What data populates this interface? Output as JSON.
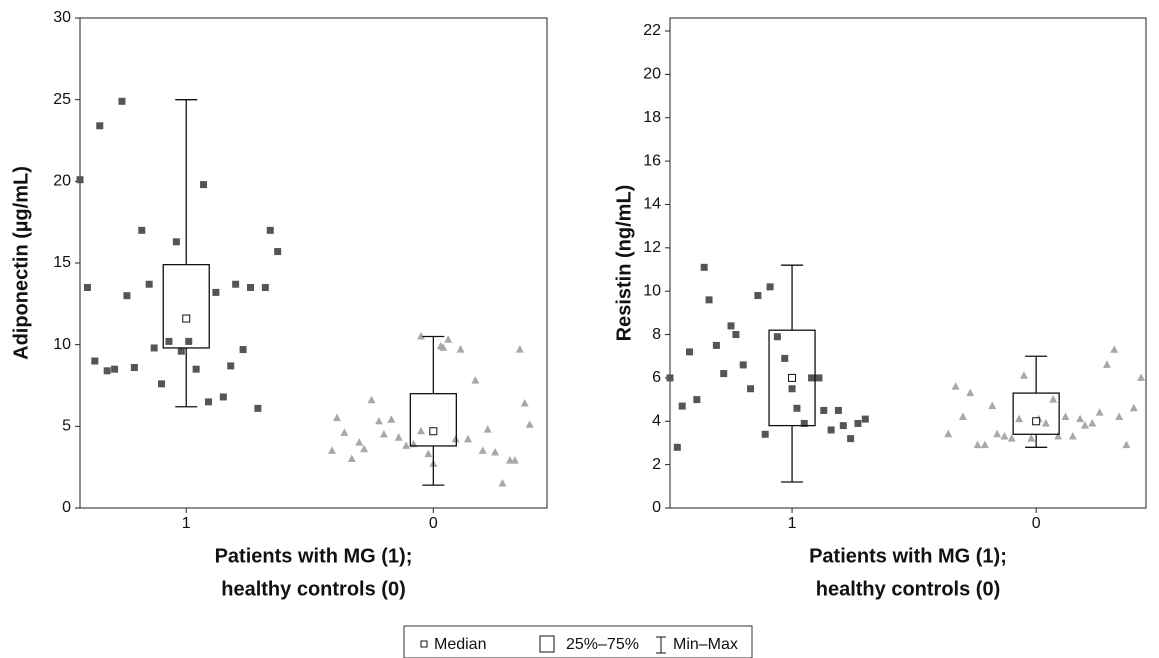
{
  "chart_data": [
    {
      "type": "box",
      "ylabel": "Adiponectin (µg/mL)",
      "xlabel": [
        "Patients with MG (1);",
        "healthy controls (0)"
      ],
      "xlim": [
        -0.43,
        1.46
      ],
      "xticks": [
        {
          "value": 0,
          "label": "1"
        },
        {
          "value": 1,
          "label": "0"
        }
      ],
      "ylim": [
        0,
        30
      ],
      "yticks": [
        0,
        5,
        10,
        15,
        20,
        25,
        30
      ],
      "boxes": [
        {
          "median": 11.6,
          "q1": 9.8,
          "q3": 14.9,
          "min": 6.2,
          "max": 25
        },
        {
          "median": 4.7,
          "q1": 3.8,
          "q3": 7.0,
          "min": 1.4,
          "max": 10.5
        }
      ],
      "points": [
        {
          "marker": "square",
          "color": "#555555",
          "x": [
            -0.43,
            -0.4,
            -0.37,
            -0.35,
            -0.32,
            -0.29,
            -0.26,
            -0.24,
            -0.21,
            -0.18,
            -0.15,
            -0.13,
            -0.1,
            -0.07,
            -0.04,
            -0.02,
            0.01,
            0.04,
            0.07,
            0.09,
            0.12,
            0.15,
            0.18,
            0.2,
            0.23,
            0.26,
            0.29,
            0.32,
            0.34,
            0.37
          ],
          "y": [
            20.1,
            13.5,
            9.0,
            23.4,
            8.4,
            8.5,
            24.9,
            13.0,
            8.6,
            17.0,
            13.7,
            9.8,
            7.6,
            10.2,
            16.3,
            9.6,
            10.2,
            8.5,
            19.8,
            6.5,
            13.2,
            6.8,
            8.7,
            13.7,
            9.7,
            13.5,
            6.1,
            13.5,
            17.0,
            15.7
          ]
        },
        {
          "marker": "triangle",
          "color": "#a8a8a8",
          "x": [
            0.59,
            0.61,
            0.64,
            0.67,
            0.7,
            0.72,
            0.75,
            0.78,
            0.8,
            0.83,
            0.86,
            0.89,
            0.92,
            0.95,
            0.95,
            0.98,
            1.0,
            1.03,
            1.04,
            1.06,
            1.09,
            1.11,
            1.14,
            1.17,
            1.2,
            1.22,
            1.25,
            1.28,
            1.31,
            1.33,
            1.35,
            1.37,
            1.39
          ],
          "y": [
            3.5,
            5.5,
            4.6,
            3.0,
            4.0,
            3.6,
            6.6,
            5.3,
            4.5,
            5.4,
            4.3,
            3.8,
            3.9,
            4.7,
            10.5,
            3.3,
            2.7,
            9.9,
            9.8,
            10.3,
            4.2,
            9.7,
            4.2,
            7.8,
            3.5,
            4.8,
            3.4,
            1.5,
            2.9,
            2.9,
            9.7,
            6.4,
            5.1
          ]
        }
      ]
    },
    {
      "type": "box",
      "ylabel": "Resistin (ng/mL)",
      "xlabel": [
        "Patients with MG (1);",
        "healthy controls (0)"
      ],
      "xlim": [
        -0.5,
        1.45
      ],
      "xticks": [
        {
          "value": 0,
          "label": "1"
        },
        {
          "value": 1,
          "label": "0"
        }
      ],
      "ylim": [
        0,
        22.6
      ],
      "yticks": [
        0,
        2,
        4,
        6,
        8,
        10,
        12,
        14,
        16,
        18,
        20,
        22
      ],
      "boxes": [
        {
          "median": 6.0,
          "q1": 3.8,
          "q3": 8.2,
          "min": 1.2,
          "max": 11.2
        },
        {
          "median": 4.0,
          "q1": 3.4,
          "q3": 5.3,
          "min": 2.8,
          "max": 7.0
        }
      ],
      "points": [
        {
          "marker": "square",
          "color": "#555555",
          "x": [
            -0.5,
            -0.47,
            -0.45,
            -0.42,
            -0.39,
            -0.36,
            -0.34,
            -0.31,
            -0.28,
            -0.25,
            -0.23,
            -0.2,
            -0.17,
            -0.14,
            -0.11,
            -0.09,
            -0.06,
            -0.03,
            0.0,
            0.02,
            0.05,
            0.08,
            0.11,
            0.13,
            0.16,
            0.19,
            0.21,
            0.24,
            0.27,
            0.3
          ],
          "y": [
            6.0,
            2.8,
            4.7,
            7.2,
            5.0,
            11.1,
            9.6,
            7.5,
            6.2,
            8.4,
            8.0,
            6.6,
            5.5,
            9.8,
            3.4,
            10.2,
            7.9,
            6.9,
            5.5,
            4.6,
            3.9,
            6.0,
            6.0,
            4.5,
            3.6,
            4.5,
            3.8,
            3.2,
            3.9,
            4.1
          ]
        },
        {
          "marker": "triangle",
          "color": "#a8a8a8",
          "x": [
            0.64,
            0.67,
            0.7,
            0.73,
            0.76,
            0.79,
            0.82,
            0.84,
            0.87,
            0.9,
            0.93,
            0.95,
            0.98,
            1.01,
            1.04,
            1.07,
            1.09,
            1.12,
            1.15,
            1.18,
            1.2,
            1.23,
            1.26,
            1.29,
            1.32,
            1.34,
            1.37,
            1.4,
            1.43
          ],
          "y": [
            3.4,
            5.6,
            4.2,
            5.3,
            2.9,
            2.9,
            4.7,
            3.4,
            3.3,
            3.2,
            4.1,
            6.1,
            3.2,
            4.1,
            3.9,
            5.0,
            3.3,
            4.2,
            3.3,
            4.1,
            3.8,
            3.9,
            4.4,
            6.6,
            7.3,
            4.2,
            2.9,
            4.6,
            6.0
          ]
        }
      ]
    }
  ],
  "legend": {
    "items": [
      "Median",
      "25%–75%",
      "Min–Max"
    ]
  }
}
